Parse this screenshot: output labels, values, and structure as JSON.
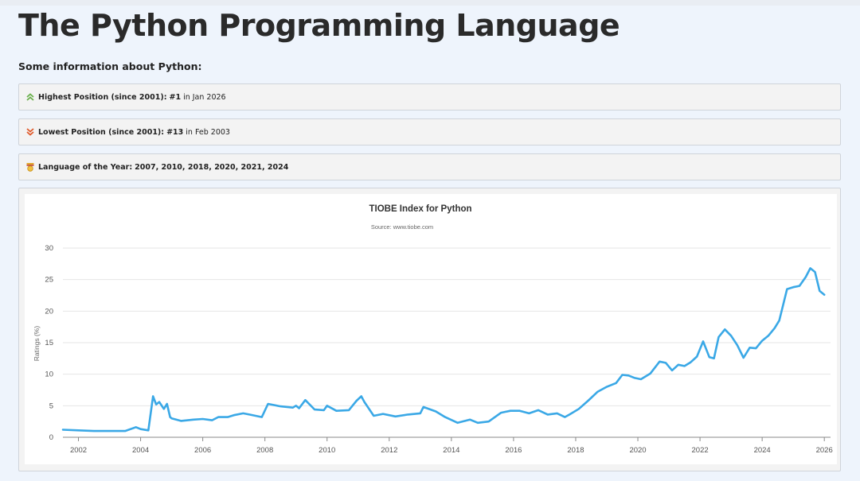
{
  "page": {
    "title": "The Python Programming Language",
    "subheading": "Some information about Python:"
  },
  "info": {
    "highest": {
      "label": "Highest Position (since 2001):",
      "value": "#1",
      "suffix": "in Jan 2026",
      "icon": "double-chevron-up-icon",
      "color": "#6ab04c"
    },
    "lowest": {
      "label": "Lowest Position (since 2001):",
      "value": "#13",
      "suffix": "in Feb 2003",
      "icon": "double-chevron-down-icon",
      "color": "#e05a2b"
    },
    "loty": {
      "label": "Language of the Year:",
      "value": "2007, 2010, 2018, 2020, 2021, 2024",
      "icon": "medal-icon"
    }
  },
  "chart_data": {
    "type": "line",
    "title": "TIOBE Index for Python",
    "subtitle": "Source: www.tiobe.com",
    "ylabel": "Ratings (%)",
    "xlabel": "",
    "ylim": [
      0,
      30
    ],
    "yticks": [
      "0",
      "5",
      "10",
      "15",
      "20",
      "25",
      "30"
    ],
    "xlim": [
      2001.5,
      2026.2
    ],
    "xticks": [
      "2002",
      "2004",
      "2006",
      "2008",
      "2010",
      "2012",
      "2014",
      "2016",
      "2018",
      "2020",
      "2022",
      "2024",
      "2026"
    ],
    "grid": true,
    "color": "#3aa8e6",
    "x": [
      2001.5,
      2002.0,
      2002.5,
      2003.0,
      2003.5,
      2003.85,
      2004.0,
      2004.25,
      2004.4,
      2004.5,
      2004.6,
      2004.75,
      2004.85,
      2004.95,
      2005.0,
      2005.3,
      2005.7,
      2006.0,
      2006.3,
      2006.5,
      2006.8,
      2007.0,
      2007.3,
      2007.5,
      2007.9,
      2008.1,
      2008.5,
      2008.9,
      2009.0,
      2009.1,
      2009.3,
      2009.6,
      2009.9,
      2010.0,
      2010.3,
      2010.7,
      2010.95,
      2011.1,
      2011.2,
      2011.5,
      2011.8,
      2012.2,
      2012.6,
      2013.0,
      2013.1,
      2013.5,
      2013.8,
      2014.2,
      2014.6,
      2014.85,
      2015.2,
      2015.6,
      2015.9,
      2016.2,
      2016.5,
      2016.8,
      2017.1,
      2017.4,
      2017.65,
      2017.8,
      2018.1,
      2018.4,
      2018.7,
      2019.0,
      2019.3,
      2019.5,
      2019.7,
      2019.9,
      2020.1,
      2020.4,
      2020.7,
      2020.9,
      2021.1,
      2021.3,
      2021.5,
      2021.7,
      2021.9,
      2022.1,
      2022.3,
      2022.45,
      2022.6,
      2022.8,
      2023.0,
      2023.2,
      2023.4,
      2023.6,
      2023.8,
      2024.0,
      2024.2,
      2024.4,
      2024.55,
      2024.8,
      2025.0,
      2025.2,
      2025.4,
      2025.55,
      2025.7,
      2025.85,
      2026.0
    ],
    "values": [
      1.2,
      1.1,
      1.0,
      1.0,
      1.0,
      1.6,
      1.3,
      1.1,
      6.5,
      5.2,
      5.6,
      4.5,
      5.3,
      3.2,
      3.0,
      2.6,
      2.8,
      2.9,
      2.7,
      3.2,
      3.2,
      3.5,
      3.8,
      3.6,
      3.2,
      5.3,
      4.9,
      4.7,
      5.0,
      4.6,
      5.9,
      4.4,
      4.3,
      5.0,
      4.2,
      4.3,
      5.8,
      6.5,
      5.6,
      3.4,
      3.7,
      3.3,
      3.6,
      3.8,
      4.8,
      4.1,
      3.2,
      2.3,
      2.8,
      2.3,
      2.5,
      3.9,
      4.2,
      4.2,
      3.8,
      4.3,
      3.6,
      3.8,
      3.2,
      3.6,
      4.5,
      5.8,
      7.2,
      8.0,
      8.6,
      9.9,
      9.8,
      9.4,
      9.2,
      10.1,
      12.0,
      11.8,
      10.6,
      11.5,
      11.3,
      11.9,
      12.8,
      15.2,
      12.7,
      12.5,
      15.9,
      17.1,
      16.1,
      14.6,
      12.6,
      14.2,
      14.1,
      15.3,
      16.1,
      17.3,
      18.5,
      23.5,
      23.8,
      24.0,
      25.4,
      26.8,
      26.2,
      23.2,
      22.6
    ]
  }
}
